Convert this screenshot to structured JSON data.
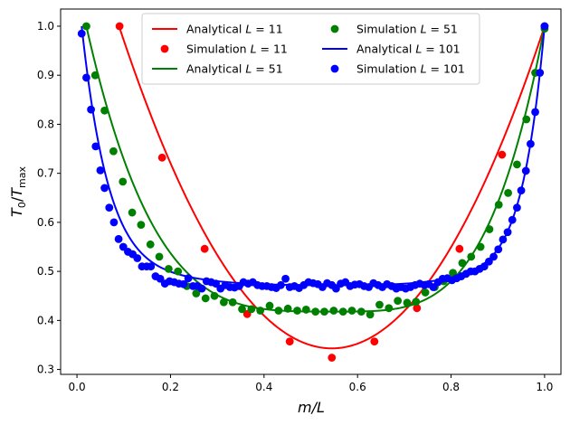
{
  "chart_data": {
    "type": "line",
    "xlabel": "m/L",
    "ylabel": "T0/Tmax",
    "xlim": [
      -0.035,
      1.035
    ],
    "ylim": [
      0.29,
      1.035
    ],
    "x_ticks": [
      "0.0",
      "0.2",
      "0.4",
      "0.6",
      "0.8",
      "1.0"
    ],
    "y_ticks": [
      "0.3",
      "0.4",
      "0.5",
      "0.6",
      "0.7",
      "0.8",
      "0.9",
      "1.0"
    ],
    "grid": false,
    "legend": {
      "placement": "top-center",
      "columns": 2,
      "entries": [
        {
          "label_prefix": "Analytical ",
          "label_var": "L",
          "label_value": " = 11",
          "marker": "line",
          "color": "#ff0000"
        },
        {
          "label_prefix": "Simulation ",
          "label_var": "L",
          "label_value": " = 11",
          "marker": "dot",
          "color": "#ff0000"
        },
        {
          "label_prefix": "Analytical ",
          "label_var": "L",
          "label_value": " = 51",
          "marker": "line",
          "color": "#008000"
        },
        {
          "label_prefix": "Simulation ",
          "label_var": "L",
          "label_value": " = 51",
          "marker": "dot",
          "color": "#008000"
        },
        {
          "label_prefix": "Analytical ",
          "label_var": "L",
          "label_value": " = 101",
          "marker": "line",
          "color": "#0000ff"
        },
        {
          "label_prefix": "Simulation ",
          "label_var": "L",
          "label_value": " = 101",
          "marker": "dot",
          "color": "#0000ff"
        }
      ]
    },
    "series": [
      {
        "kind": "analytical",
        "L": 11,
        "color": "#ff0000",
        "x_range": [
          0.09,
          1.0
        ],
        "minimum": [
          0.545,
          0.343
        ],
        "endpoint_y": 1.0
      },
      {
        "kind": "analytical",
        "L": 51,
        "color": "#008000",
        "x_range": [
          0.02,
          1.0
        ],
        "minimum": [
          0.55,
          0.418
        ],
        "endpoint_y": 1.0
      },
      {
        "kind": "analytical",
        "L": 101,
        "color": "#0000ff",
        "x_range": [
          0.01,
          1.0
        ],
        "minimum": [
          0.55,
          0.472
        ],
        "endpoint_y": 1.0
      },
      {
        "kind": "simulation",
        "L": 11,
        "color": "#ff0000",
        "points": [
          [
            0.091,
            1.0
          ],
          [
            0.182,
            0.732
          ],
          [
            0.273,
            0.546
          ],
          [
            0.364,
            0.413
          ],
          [
            0.455,
            0.357
          ],
          [
            0.545,
            0.324
          ],
          [
            0.636,
            0.357
          ],
          [
            0.727,
            0.425
          ],
          [
            0.818,
            0.546
          ],
          [
            0.909,
            0.738
          ],
          [
            1.0,
            1.0
          ]
        ]
      },
      {
        "kind": "simulation",
        "L": 51,
        "color": "#008000",
        "points": [
          [
            0.02,
            1.0
          ],
          [
            0.039,
            0.9
          ],
          [
            0.059,
            0.828
          ],
          [
            0.078,
            0.745
          ],
          [
            0.098,
            0.683
          ],
          [
            0.118,
            0.62
          ],
          [
            0.137,
            0.595
          ],
          [
            0.157,
            0.555
          ],
          [
            0.176,
            0.53
          ],
          [
            0.196,
            0.505
          ],
          [
            0.216,
            0.5
          ],
          [
            0.235,
            0.47
          ],
          [
            0.255,
            0.455
          ],
          [
            0.275,
            0.445
          ],
          [
            0.294,
            0.45
          ],
          [
            0.314,
            0.437
          ],
          [
            0.333,
            0.437
          ],
          [
            0.353,
            0.423
          ],
          [
            0.373,
            0.423
          ],
          [
            0.392,
            0.42
          ],
          [
            0.412,
            0.43
          ],
          [
            0.431,
            0.42
          ],
          [
            0.451,
            0.424
          ],
          [
            0.471,
            0.42
          ],
          [
            0.49,
            0.422
          ],
          [
            0.51,
            0.418
          ],
          [
            0.529,
            0.418
          ],
          [
            0.549,
            0.42
          ],
          [
            0.569,
            0.418
          ],
          [
            0.588,
            0.42
          ],
          [
            0.608,
            0.418
          ],
          [
            0.627,
            0.412
          ],
          [
            0.647,
            0.432
          ],
          [
            0.667,
            0.425
          ],
          [
            0.686,
            0.44
          ],
          [
            0.706,
            0.436
          ],
          [
            0.725,
            0.438
          ],
          [
            0.745,
            0.457
          ],
          [
            0.765,
            0.468
          ],
          [
            0.784,
            0.48
          ],
          [
            0.804,
            0.497
          ],
          [
            0.824,
            0.517
          ],
          [
            0.843,
            0.53
          ],
          [
            0.863,
            0.55
          ],
          [
            0.882,
            0.586
          ],
          [
            0.902,
            0.636
          ],
          [
            0.922,
            0.66
          ],
          [
            0.941,
            0.718
          ],
          [
            0.961,
            0.81
          ],
          [
            0.98,
            0.905
          ],
          [
            1.0,
            0.995
          ]
        ]
      },
      {
        "kind": "simulation",
        "L": 101,
        "color": "#0000ff",
        "points": [
          [
            0.01,
            0.985
          ],
          [
            0.02,
            0.895
          ],
          [
            0.03,
            0.83
          ],
          [
            0.04,
            0.755
          ],
          [
            0.05,
            0.706
          ],
          [
            0.059,
            0.67
          ],
          [
            0.069,
            0.63
          ],
          [
            0.079,
            0.6
          ],
          [
            0.089,
            0.566
          ],
          [
            0.099,
            0.55
          ],
          [
            0.109,
            0.54
          ],
          [
            0.119,
            0.535
          ],
          [
            0.129,
            0.527
          ],
          [
            0.139,
            0.51
          ],
          [
            0.149,
            0.51
          ],
          [
            0.158,
            0.51
          ],
          [
            0.168,
            0.49
          ],
          [
            0.178,
            0.485
          ],
          [
            0.188,
            0.475
          ],
          [
            0.198,
            0.48
          ],
          [
            0.208,
            0.478
          ],
          [
            0.218,
            0.475
          ],
          [
            0.228,
            0.474
          ],
          [
            0.238,
            0.486
          ],
          [
            0.248,
            0.47
          ],
          [
            0.257,
            0.47
          ],
          [
            0.267,
            0.465
          ],
          [
            0.277,
            0.48
          ],
          [
            0.287,
            0.478
          ],
          [
            0.297,
            0.475
          ],
          [
            0.307,
            0.465
          ],
          [
            0.317,
            0.472
          ],
          [
            0.327,
            0.468
          ],
          [
            0.337,
            0.467
          ],
          [
            0.347,
            0.47
          ],
          [
            0.356,
            0.478
          ],
          [
            0.366,
            0.475
          ],
          [
            0.376,
            0.478
          ],
          [
            0.386,
            0.472
          ],
          [
            0.396,
            0.47
          ],
          [
            0.406,
            0.47
          ],
          [
            0.416,
            0.468
          ],
          [
            0.426,
            0.466
          ],
          [
            0.436,
            0.472
          ],
          [
            0.446,
            0.485
          ],
          [
            0.455,
            0.468
          ],
          [
            0.465,
            0.47
          ],
          [
            0.475,
            0.466
          ],
          [
            0.485,
            0.472
          ],
          [
            0.495,
            0.478
          ],
          [
            0.505,
            0.476
          ],
          [
            0.515,
            0.474
          ],
          [
            0.525,
            0.468
          ],
          [
            0.535,
            0.476
          ],
          [
            0.545,
            0.472
          ],
          [
            0.554,
            0.465
          ],
          [
            0.564,
            0.475
          ],
          [
            0.574,
            0.478
          ],
          [
            0.584,
            0.47
          ],
          [
            0.594,
            0.473
          ],
          [
            0.604,
            0.474
          ],
          [
            0.614,
            0.47
          ],
          [
            0.624,
            0.468
          ],
          [
            0.634,
            0.476
          ],
          [
            0.644,
            0.472
          ],
          [
            0.653,
            0.468
          ],
          [
            0.663,
            0.474
          ],
          [
            0.673,
            0.47
          ],
          [
            0.683,
            0.465
          ],
          [
            0.693,
            0.468
          ],
          [
            0.703,
            0.465
          ],
          [
            0.713,
            0.468
          ],
          [
            0.723,
            0.472
          ],
          [
            0.733,
            0.475
          ],
          [
            0.743,
            0.472
          ],
          [
            0.752,
            0.474
          ],
          [
            0.762,
            0.468
          ],
          [
            0.772,
            0.478
          ],
          [
            0.782,
            0.485
          ],
          [
            0.792,
            0.486
          ],
          [
            0.802,
            0.482
          ],
          [
            0.812,
            0.486
          ],
          [
            0.822,
            0.49
          ],
          [
            0.832,
            0.495
          ],
          [
            0.842,
            0.5
          ],
          [
            0.851,
            0.5
          ],
          [
            0.861,
            0.505
          ],
          [
            0.871,
            0.51
          ],
          [
            0.881,
            0.52
          ],
          [
            0.891,
            0.53
          ],
          [
            0.901,
            0.545
          ],
          [
            0.911,
            0.565
          ],
          [
            0.921,
            0.58
          ],
          [
            0.931,
            0.605
          ],
          [
            0.941,
            0.63
          ],
          [
            0.95,
            0.665
          ],
          [
            0.96,
            0.705
          ],
          [
            0.97,
            0.76
          ],
          [
            0.98,
            0.825
          ],
          [
            0.99,
            0.905
          ],
          [
            1.0,
            1.0
          ]
        ]
      }
    ]
  }
}
